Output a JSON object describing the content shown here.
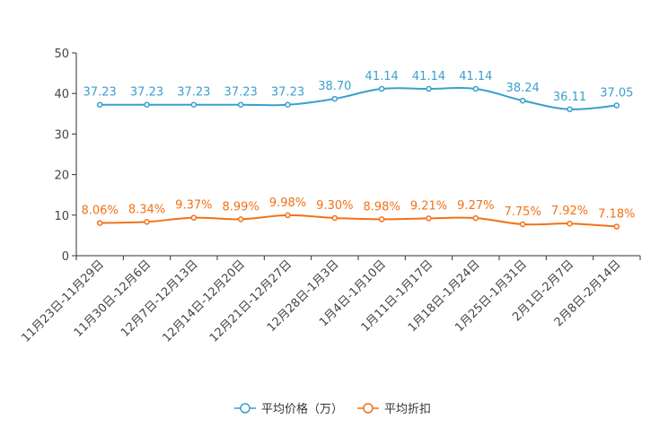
{
  "chart_data": {
    "type": "line",
    "title": "",
    "xlabel": "",
    "ylabel": "",
    "ylim": [
      0,
      50
    ],
    "yticks": [
      0,
      10,
      20,
      30,
      40,
      50
    ],
    "grid": false,
    "legend_position": "bottom",
    "categories": [
      "11月23日-11月29日",
      "11月30日-12月6日",
      "12月7日-12月13日",
      "12月14日-12月20日",
      "12月21日-12月27日",
      "12月28日-1月3日",
      "1月4日-1月10日",
      "1月11日-1月17日",
      "1月18日-1月24日",
      "1月25日-1月31日",
      "2月1日-2月7日",
      "2月8日-2月14日"
    ],
    "series": [
      {
        "name": "平均价格（万）",
        "color": "#3a9fce",
        "values": [
          37.23,
          37.23,
          37.23,
          37.23,
          37.23,
          38.7,
          41.14,
          41.14,
          41.14,
          38.24,
          36.11,
          37.05
        ],
        "labels": [
          "37.23",
          "37.23",
          "37.23",
          "37.23",
          "37.23",
          "38.70",
          "41.14",
          "41.14",
          "41.14",
          "38.24",
          "36.11",
          "37.05"
        ]
      },
      {
        "name": "平均折扣",
        "color": "#f27215",
        "values": [
          8.06,
          8.34,
          9.37,
          8.99,
          9.98,
          9.3,
          8.98,
          9.21,
          9.27,
          7.75,
          7.92,
          7.18
        ],
        "labels": [
          "8.06%",
          "8.34%",
          "9.37%",
          "8.99%",
          "9.98%",
          "9.30%",
          "8.98%",
          "9.21%",
          "9.27%",
          "7.75%",
          "7.92%",
          "7.18%"
        ]
      }
    ]
  }
}
